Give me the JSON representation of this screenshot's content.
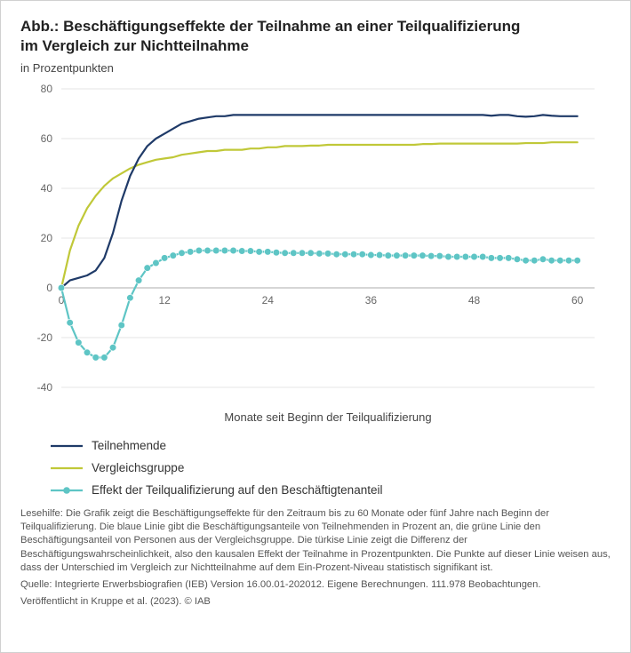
{
  "title_line1": "Abb.: Beschäftigungseffekte der Teilnahme an einer Teilqualifizierung",
  "title_line2": "im Vergleich zur Nichtteilnahme",
  "subtitle": "in Prozentpunkten",
  "chart": {
    "type": "line",
    "xlim": [
      0,
      62
    ],
    "ylim": [
      -40,
      80
    ],
    "xticks": [
      0,
      12,
      24,
      36,
      48,
      60
    ],
    "yticks": [
      -40,
      -20,
      0,
      20,
      40,
      60,
      80
    ],
    "x_axis_label": "Monate seit Beginn der Teilqualifizierung",
    "background_color": "#ffffff",
    "grid_color": "#e4e4e4",
    "axis_text_color": "#666666",
    "axis_label_color": "#444444",
    "tick_fontsize": 12,
    "axis_label_fontsize": 13,
    "line_width": 2.2,
    "marker_radius": 3.8,
    "series": {
      "teilnehmende": {
        "label": "Teilnehmende",
        "color": "#1f3a68",
        "has_markers": false,
        "x": [
          0,
          1,
          2,
          3,
          4,
          5,
          6,
          7,
          8,
          9,
          10,
          11,
          12,
          13,
          14,
          15,
          16,
          17,
          18,
          19,
          20,
          21,
          22,
          23,
          24,
          25,
          26,
          27,
          28,
          29,
          30,
          31,
          32,
          33,
          34,
          35,
          36,
          37,
          38,
          39,
          40,
          41,
          42,
          43,
          44,
          45,
          46,
          47,
          48,
          49,
          50,
          51,
          52,
          53,
          54,
          55,
          56,
          57,
          58,
          59,
          60
        ],
        "y": [
          0,
          3,
          4,
          5,
          7,
          12,
          22,
          35,
          45,
          52,
          57,
          60,
          62,
          64,
          66,
          67,
          68,
          68.5,
          69,
          69,
          69.5,
          69.5,
          69.5,
          69.5,
          69.5,
          69.5,
          69.5,
          69.5,
          69.5,
          69.5,
          69.5,
          69.5,
          69.5,
          69.5,
          69.5,
          69.5,
          69.5,
          69.5,
          69.5,
          69.5,
          69.5,
          69.5,
          69.5,
          69.5,
          69.5,
          69.5,
          69.5,
          69.5,
          69.5,
          69.5,
          69.2,
          69.5,
          69.5,
          69,
          68.8,
          69,
          69.5,
          69.2,
          69,
          69,
          69
        ]
      },
      "vergleichsgruppe": {
        "label": "Vergleichsgruppe",
        "color": "#c0c838",
        "has_markers": false,
        "x": [
          0,
          1,
          2,
          3,
          4,
          5,
          6,
          7,
          8,
          9,
          10,
          11,
          12,
          13,
          14,
          15,
          16,
          17,
          18,
          19,
          20,
          21,
          22,
          23,
          24,
          25,
          26,
          27,
          28,
          29,
          30,
          31,
          32,
          33,
          34,
          35,
          36,
          37,
          38,
          39,
          40,
          41,
          42,
          43,
          44,
          45,
          46,
          47,
          48,
          49,
          50,
          51,
          52,
          53,
          54,
          55,
          56,
          57,
          58,
          59,
          60
        ],
        "y": [
          0,
          15,
          25,
          32,
          37,
          41,
          44,
          46,
          48,
          49.5,
          50.5,
          51.5,
          52,
          52.5,
          53.5,
          54,
          54.5,
          55,
          55,
          55.5,
          55.5,
          55.5,
          56,
          56,
          56.5,
          56.5,
          57,
          57,
          57,
          57.2,
          57.2,
          57.5,
          57.5,
          57.5,
          57.5,
          57.5,
          57.5,
          57.5,
          57.5,
          57.5,
          57.5,
          57.5,
          57.8,
          57.8,
          58,
          58,
          58,
          58,
          58,
          58,
          58,
          58,
          58,
          58,
          58.2,
          58.2,
          58.2,
          58.5,
          58.5,
          58.5,
          58.5
        ]
      },
      "effekt": {
        "label": "Effekt der Teilqualifizierung auf den Beschäftigtenanteil",
        "color": "#5ec5c5",
        "has_markers": true,
        "x": [
          0,
          1,
          2,
          3,
          4,
          5,
          6,
          7,
          8,
          9,
          10,
          11,
          12,
          13,
          14,
          15,
          16,
          17,
          18,
          19,
          20,
          21,
          22,
          23,
          24,
          25,
          26,
          27,
          28,
          29,
          30,
          31,
          32,
          33,
          34,
          35,
          36,
          37,
          38,
          39,
          40,
          41,
          42,
          43,
          44,
          45,
          46,
          47,
          48,
          49,
          50,
          51,
          52,
          53,
          54,
          55,
          56,
          57,
          58,
          59,
          60
        ],
        "y": [
          0,
          -14,
          -22,
          -26,
          -28,
          -28,
          -24,
          -15,
          -4,
          3,
          8,
          10,
          12,
          13,
          14,
          14.5,
          15,
          15,
          15,
          15,
          15,
          14.8,
          14.8,
          14.5,
          14.5,
          14.2,
          14,
          14,
          14,
          14,
          13.8,
          13.8,
          13.5,
          13.5,
          13.5,
          13.5,
          13.2,
          13.2,
          13,
          13,
          13,
          13,
          13,
          12.8,
          12.8,
          12.5,
          12.5,
          12.5,
          12.5,
          12.5,
          12,
          12,
          12,
          11.5,
          11,
          11,
          11.5,
          11,
          11,
          11,
          11
        ]
      }
    }
  },
  "legend": [
    {
      "key": "teilnehmende"
    },
    {
      "key": "vergleichsgruppe"
    },
    {
      "key": "effekt"
    }
  ],
  "caption": {
    "lesehilfe": "Lesehilfe: Die Grafik zeigt die Beschäftigungseffekte für den Zeitraum bis zu 60 Monate oder fünf Jahre nach Beginn der Teilqualifizierung. Die blaue Linie gibt die Beschäftigungsanteile von Teilnehmenden in Prozent an, die grüne Linie den Beschäftigungsanteil von Personen aus der Vergleichsgruppe. Die türkise Linie zeigt die Differenz der Beschäftigungswahrscheinlichkeit, also den kausalen Effekt der Teilnahme in Prozentpunkten. Die Punkte auf dieser Linie weisen aus, dass der Unterschied im Vergleich zur Nichtteilnahme auf dem Ein-Prozent-Niveau statistisch signifikant ist.",
    "quelle": "Quelle: Integrierte Erwerbsbiografien (IEB) Version 16.00.01-202012. Eigene Berechnungen. 111.978 Beobachtungen.",
    "pub": "Veröffentlicht in Kruppe et al. (2023).  © IAB"
  }
}
